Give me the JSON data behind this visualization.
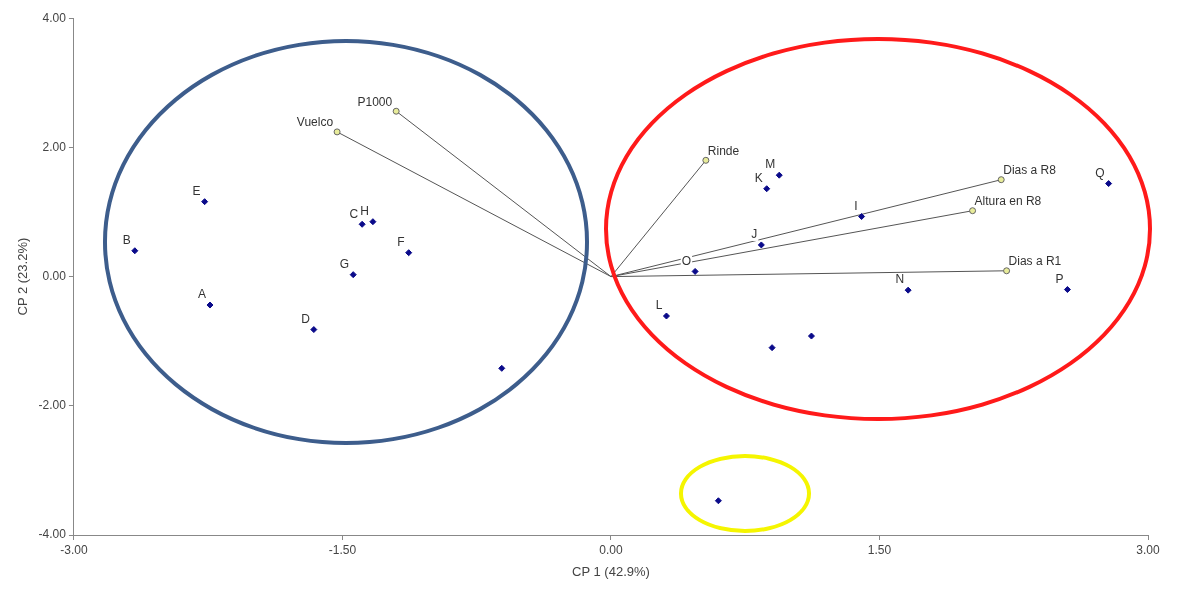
{
  "chart_data": {
    "type": "scatter",
    "xlabel": "CP 1 (42.9%)",
    "ylabel": "CP 2 (23.2%)",
    "xlim": [
      -3,
      3
    ],
    "xticks": [
      {
        "value": -3,
        "label": "-3.00"
      },
      {
        "value": -1.5,
        "label": "-1.50"
      },
      {
        "value": 0,
        "label": "0.00"
      },
      {
        "value": 1.5,
        "label": "1.50"
      },
      {
        "value": 3,
        "label": "3.00"
      }
    ],
    "ylim": [
      -4,
      4
    ],
    "yticks": [
      {
        "value": -4,
        "label": "-4.00"
      },
      {
        "value": -2,
        "label": "-2.00"
      },
      {
        "value": 0,
        "label": "0.00"
      },
      {
        "value": 2,
        "label": "2.00"
      },
      {
        "value": 4,
        "label": "4.00"
      }
    ],
    "grid": false,
    "legend": false,
    "series": [
      {
        "type": "scatter",
        "color": "#0a0a8a",
        "marker": "diamond",
        "x": [
          -2.27,
          -2.66,
          -2.24,
          -1.39,
          -1.33,
          -1.13,
          -1.44,
          -1.66,
          -0.61,
          0.94,
          0.87,
          1.4,
          0.84,
          0.47,
          0.31,
          1.66,
          2.55,
          2.78,
          0.9,
          1.12,
          0.6
        ],
        "values": [
          1.16,
          0.4,
          -0.44,
          0.81,
          0.85,
          0.37,
          0.03,
          -0.82,
          -1.42,
          1.57,
          1.36,
          0.93,
          0.49,
          0.08,
          -0.61,
          -0.21,
          -0.2,
          1.44,
          -1.1,
          -0.92,
          -3.47
        ]
      },
      {
        "type": "line",
        "name": "P1000",
        "color": "#555555",
        "marker": "circle",
        "x": [
          0,
          -1.2
        ],
        "values": [
          0,
          2.56
        ]
      },
      {
        "type": "line",
        "name": "Vuelco",
        "color": "#555555",
        "marker": "circle",
        "x": [
          0,
          -1.53
        ],
        "values": [
          0,
          2.24
        ]
      },
      {
        "type": "line",
        "name": "Rinde",
        "color": "#555555",
        "marker": "circle",
        "x": [
          0,
          0.53
        ],
        "values": [
          0,
          1.8
        ]
      },
      {
        "type": "line",
        "name": "Dias a R8",
        "color": "#555555",
        "marker": "circle",
        "x": [
          0,
          2.18
        ],
        "values": [
          0,
          1.5
        ]
      },
      {
        "type": "line",
        "name": "Altura en R8",
        "color": "#555555",
        "marker": "circle",
        "x": [
          0,
          2.02
        ],
        "values": [
          0,
          1.02
        ]
      },
      {
        "type": "line",
        "name": "Dias a R1",
        "color": "#555555",
        "marker": "circle",
        "x": [
          0,
          2.21
        ],
        "values": [
          0,
          0.09
        ]
      }
    ],
    "annotations": [
      {
        "text": "E",
        "x": -2.27,
        "y": 1.16
      },
      {
        "text": "B",
        "x": -2.66,
        "y": 0.4
      },
      {
        "text": "A",
        "x": -2.24,
        "y": -0.44
      },
      {
        "text": "C",
        "x": -1.39,
        "y": 0.81
      },
      {
        "text": "H",
        "x": -1.33,
        "y": 0.85
      },
      {
        "text": "F",
        "x": -1.13,
        "y": 0.37
      },
      {
        "text": "G",
        "x": -1.44,
        "y": 0.03
      },
      {
        "text": "D",
        "x": -1.66,
        "y": -0.82
      },
      {
        "text": "M",
        "x": 0.94,
        "y": 1.57
      },
      {
        "text": "K",
        "x": 0.87,
        "y": 1.36
      },
      {
        "text": "I",
        "x": 1.4,
        "y": 0.93
      },
      {
        "text": "J",
        "x": 0.84,
        "y": 0.49
      },
      {
        "text": "O",
        "x": 0.47,
        "y": 0.08
      },
      {
        "text": "L",
        "x": 0.31,
        "y": -0.61
      },
      {
        "text": "N",
        "x": 1.66,
        "y": -0.21
      },
      {
        "text": "P",
        "x": 2.55,
        "y": -0.2
      },
      {
        "text": "Q",
        "x": 2.78,
        "y": 1.44
      }
    ]
  }
}
